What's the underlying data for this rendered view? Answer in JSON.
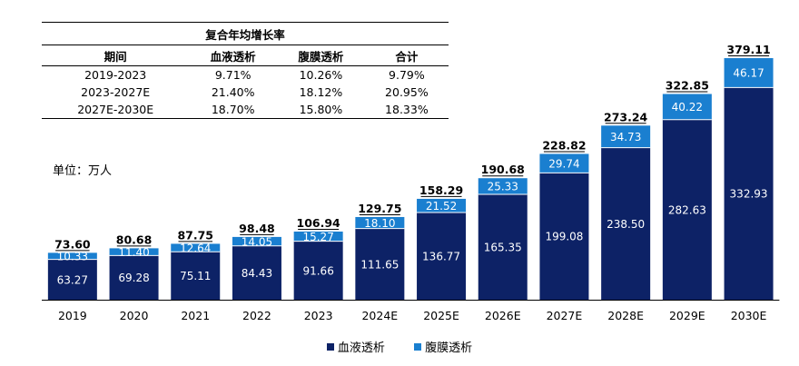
{
  "table": {
    "title": "复合年均增长率",
    "headers": [
      "期间",
      "血液透析",
      "腹膜透析",
      "合计"
    ],
    "rows": [
      [
        "2019-2023",
        "9.71%",
        "10.26%",
        "9.79%"
      ],
      [
        "2023-2027E",
        "21.40%",
        "18.12%",
        "20.95%"
      ],
      [
        "2027E-2030E",
        "18.70%",
        "15.80%",
        "18.33%"
      ]
    ]
  },
  "unit_label": "单位：万人",
  "colors": {
    "hemodialysis": "#0d2266",
    "peritoneal": "#1a7fd0"
  },
  "chart_data": {
    "type": "bar",
    "stacked": true,
    "categories": [
      "2019",
      "2020",
      "2021",
      "2022",
      "2023",
      "2024E",
      "2025E",
      "2026E",
      "2027E",
      "2028E",
      "2029E",
      "2030E"
    ],
    "series": [
      {
        "name": "血液透析",
        "values": [
          63.27,
          69.28,
          75.11,
          84.43,
          91.66,
          111.65,
          136.77,
          165.35,
          199.08,
          238.5,
          282.63,
          332.93
        ]
      },
      {
        "name": "腹膜透析",
        "values": [
          10.33,
          11.4,
          12.64,
          14.05,
          15.27,
          18.1,
          21.52,
          25.33,
          29.74,
          34.73,
          40.22,
          46.17
        ]
      }
    ],
    "totals": [
      73.6,
      80.68,
      87.75,
      98.48,
      106.94,
      129.75,
      158.29,
      190.68,
      228.82,
      273.24,
      322.85,
      379.11
    ],
    "ylim": [
      0,
      379.11
    ],
    "legend_position": "bottom",
    "grid": false
  }
}
